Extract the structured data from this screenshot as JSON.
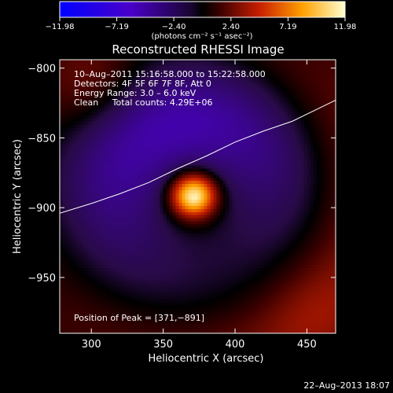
{
  "chart_data": {
    "type": "heatmap",
    "title": "Reconstructed RHESSI Image",
    "xlabel": "Heliocentric X (arcsec)",
    "ylabel": "Heliocentric Y (arcsec)",
    "xlim": [
      278,
      470
    ],
    "ylim": [
      -990,
      -794
    ],
    "x_ticks": [
      300,
      350,
      400,
      450
    ],
    "y_ticks": [
      -800,
      -850,
      -900,
      -950
    ],
    "x_tick_labels": [
      "300",
      "350",
      "400",
      "450"
    ],
    "y_tick_labels": [
      "−800",
      "−850",
      "−900",
      "−950"
    ],
    "colorbar": {
      "min": -11.98,
      "max": 11.98,
      "ticks": [
        -11.98,
        -7.19,
        -2.4,
        2.4,
        7.19,
        11.98
      ],
      "tick_labels": [
        "−11.98",
        "−7.19",
        "−2.40",
        "2.40",
        "7.19",
        "11.98"
      ],
      "unit_label": "(photons cm⁻² s⁻¹ asec⁻²)"
    },
    "info_lines": [
      "10–Aug–2011 15:16:58.000 to 15:22:58.000",
      "Detectors: 4F 5F 6F 7F 8F, Att 0",
      "Energy Range: 3.0 – 6.0 keV",
      "Clean     Total counts: 4.29E+06"
    ],
    "peak_label": "Position of Peak = [371,−891]",
    "peak": {
      "x": 371,
      "y": -891,
      "value": 11.98
    },
    "limb_curve": [
      [
        278,
        -904
      ],
      [
        300,
        -897
      ],
      [
        320,
        -890
      ],
      [
        340,
        -882
      ],
      [
        360,
        -872
      ],
      [
        380,
        -863
      ],
      [
        400,
        -853
      ],
      [
        420,
        -845
      ],
      [
        440,
        -838
      ],
      [
        470,
        -823
      ]
    ],
    "grid": false
  },
  "footer": {
    "timestamp": "22–Aug–2013 18:07"
  },
  "colors": {
    "background": "#000000",
    "text": "#ffffff",
    "limb": "#ffffff"
  }
}
